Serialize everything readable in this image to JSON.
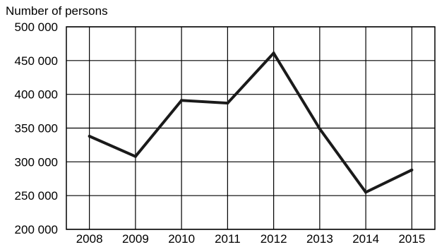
{
  "chart_data": {
    "type": "line",
    "title": "",
    "xlabel": "",
    "ylabel": "Number of persons",
    "categories": [
      "2008",
      "2009",
      "2010",
      "2011",
      "2012",
      "2013",
      "2014",
      "2015"
    ],
    "series": [
      {
        "values": [
          338000,
          308000,
          391000,
          387000,
          461000,
          349000,
          255000,
          288000
        ]
      }
    ],
    "ylim": [
      200000,
      500000
    ],
    "y_ticks": [
      200000,
      250000,
      300000,
      350000,
      400000,
      450000,
      500000
    ],
    "y_tick_labels": [
      "200 000",
      "250 000",
      "300 000",
      "350 000",
      "400 000",
      "450 000",
      "500 000"
    ],
    "grid": true,
    "line_color": "#1a1a1a"
  }
}
